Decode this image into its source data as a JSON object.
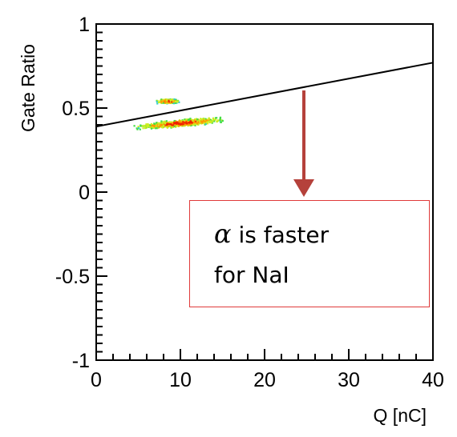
{
  "chart_data": {
    "type": "scatter",
    "title": "",
    "xlabel": "Q [nC]",
    "ylabel": "Gate Ratio",
    "xlim": [
      0,
      40
    ],
    "ylim": [
      -1,
      1
    ],
    "xticks": [
      0,
      10,
      20,
      30,
      40
    ],
    "yticks": [
      -1,
      -0.5,
      0,
      0.5,
      1
    ],
    "xtick_labels": [
      "0",
      "10",
      "20",
      "30",
      "40"
    ],
    "ytick_labels": [
      "-1",
      "-0.5",
      "0",
      "0.5",
      "1"
    ],
    "grid": false,
    "line": {
      "x": [
        0,
        40
      ],
      "y": [
        0.39,
        0.77
      ],
      "color": "#000000"
    },
    "clusters": [
      {
        "x_range": [
          7,
          10
        ],
        "y_center": 0.54,
        "y_spread": 0.015,
        "density": "medium"
      },
      {
        "x_range": [
          4,
          16
        ],
        "y_center": 0.41,
        "y_slope": 0.0045,
        "y_spread": 0.025,
        "density": "high"
      }
    ],
    "density_colors": [
      "#33cccc",
      "#44dd44",
      "#ccee22",
      "#ff9900",
      "#ee2200"
    ]
  },
  "annotation": {
    "symbol": "α",
    "line1": "is faster",
    "line2": "for NaI",
    "arrow_color": "#b5413b",
    "box_color": "#e03a3a"
  }
}
